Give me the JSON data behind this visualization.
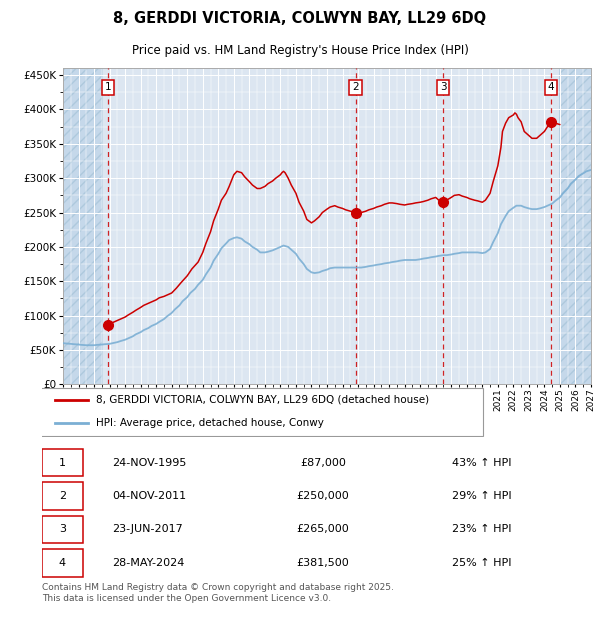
{
  "title": "8, GERDDI VICTORIA, COLWYN BAY, LL29 6DQ",
  "subtitle": "Price paid vs. HM Land Registry's House Price Index (HPI)",
  "ytick_values": [
    0,
    50000,
    100000,
    150000,
    200000,
    250000,
    300000,
    350000,
    400000,
    450000
  ],
  "ylim": [
    0,
    460000
  ],
  "xlim_start": 1993.0,
  "xlim_end": 2027.0,
  "background_color": "#ffffff",
  "plot_bg_color": "#dce6f1",
  "hatch_color": "#c5d8ea",
  "grid_color": "#ffffff",
  "red_line_color": "#cc0000",
  "blue_line_color": "#7bafd4",
  "sale_marker_color": "#cc0000",
  "sale_marker_size": 7,
  "vline_color": "#cc0000",
  "legend_label_red": "8, GERDDI VICTORIA, COLWYN BAY, LL29 6DQ (detached house)",
  "legend_label_blue": "HPI: Average price, detached house, Conwy",
  "sale_points": [
    {
      "num": 1,
      "year": 1995.9,
      "price": 87000,
      "label": "1",
      "date": "24-NOV-1995",
      "amount": "£87,000",
      "pct": "43% ↑ HPI"
    },
    {
      "num": 2,
      "year": 2011.84,
      "price": 250000,
      "label": "2",
      "date": "04-NOV-2011",
      "amount": "£250,000",
      "pct": "29% ↑ HPI"
    },
    {
      "num": 3,
      "year": 2017.47,
      "price": 265000,
      "label": "3",
      "date": "23-JUN-2017",
      "amount": "£265,000",
      "pct": "23% ↑ HPI"
    },
    {
      "num": 4,
      "year": 2024.41,
      "price": 381500,
      "label": "4",
      "date": "28-MAY-2024",
      "amount": "£381,500",
      "pct": "25% ↑ HPI"
    }
  ],
  "footer_text": "Contains HM Land Registry data © Crown copyright and database right 2025.\nThis data is licensed under the Open Government Licence v3.0.",
  "hpi_red_data": {
    "years": [
      1995.9,
      1996.0,
      1996.1,
      1996.2,
      1996.3,
      1996.5,
      1996.7,
      1997.0,
      1997.2,
      1997.5,
      1997.7,
      1998.0,
      1998.2,
      1998.5,
      1998.7,
      1999.0,
      1999.2,
      1999.5,
      1999.7,
      2000.0,
      2000.3,
      2000.6,
      2001.0,
      2001.3,
      2001.7,
      2002.0,
      2002.2,
      2002.5,
      2002.7,
      2003.0,
      2003.2,
      2003.5,
      2003.7,
      2004.0,
      2004.2,
      2004.5,
      2004.7,
      2005.0,
      2005.2,
      2005.5,
      2005.7,
      2006.0,
      2006.2,
      2006.5,
      2006.7,
      2007.0,
      2007.1,
      2007.2,
      2007.3,
      2007.5,
      2007.7,
      2008.0,
      2008.2,
      2008.5,
      2008.7,
      2009.0,
      2009.2,
      2009.5,
      2009.7,
      2010.0,
      2010.2,
      2010.5,
      2010.7,
      2011.0,
      2011.2,
      2011.5,
      2011.7,
      2011.84,
      2012.0,
      2012.2,
      2012.5,
      2012.7,
      2013.0,
      2013.2,
      2013.5,
      2013.7,
      2014.0,
      2014.2,
      2014.5,
      2014.7,
      2015.0,
      2015.2,
      2015.5,
      2015.7,
      2016.0,
      2016.2,
      2016.5,
      2016.7,
      2017.0,
      2017.2,
      2017.47,
      2017.5,
      2017.7,
      2018.0,
      2018.2,
      2018.5,
      2018.7,
      2019.0,
      2019.2,
      2019.5,
      2019.7,
      2020.0,
      2020.2,
      2020.5,
      2020.7,
      2021.0,
      2021.2,
      2021.3,
      2021.5,
      2021.7,
      2022.0,
      2022.1,
      2022.2,
      2022.3,
      2022.5,
      2022.6,
      2022.7,
      2023.0,
      2023.2,
      2023.5,
      2023.7,
      2024.0,
      2024.2,
      2024.41,
      2024.5,
      2024.7,
      2025.0
    ],
    "values": [
      87000,
      88000,
      89000,
      90000,
      91000,
      93000,
      95000,
      98000,
      101000,
      105000,
      108000,
      112000,
      115000,
      118000,
      120000,
      123000,
      126000,
      128000,
      130000,
      133000,
      140000,
      148000,
      158000,
      168000,
      178000,
      192000,
      205000,
      222000,
      238000,
      255000,
      268000,
      278000,
      288000,
      305000,
      310000,
      308000,
      302000,
      295000,
      290000,
      285000,
      285000,
      288000,
      292000,
      296000,
      300000,
      305000,
      308000,
      310000,
      308000,
      300000,
      290000,
      278000,
      265000,
      252000,
      240000,
      235000,
      238000,
      244000,
      250000,
      255000,
      258000,
      260000,
      258000,
      256000,
      254000,
      252000,
      251000,
      250000,
      249000,
      250000,
      252000,
      254000,
      256000,
      258000,
      260000,
      262000,
      264000,
      264000,
      263000,
      262000,
      261000,
      262000,
      263000,
      264000,
      265000,
      266000,
      268000,
      270000,
      272000,
      268000,
      265000,
      267000,
      268000,
      272000,
      275000,
      276000,
      274000,
      272000,
      270000,
      268000,
      267000,
      265000,
      268000,
      278000,
      295000,
      318000,
      345000,
      368000,
      380000,
      388000,
      392000,
      395000,
      393000,
      388000,
      382000,
      375000,
      368000,
      362000,
      358000,
      358000,
      362000,
      368000,
      375000,
      381500,
      382000,
      380000,
      378000
    ]
  },
  "hpi_blue_data": {
    "years": [
      1993.0,
      1993.2,
      1993.5,
      1993.7,
      1994.0,
      1994.2,
      1994.5,
      1994.7,
      1995.0,
      1995.2,
      1995.5,
      1995.7,
      1996.0,
      1996.2,
      1996.5,
      1996.7,
      1997.0,
      1997.2,
      1997.5,
      1997.7,
      1998.0,
      1998.2,
      1998.5,
      1998.7,
      1999.0,
      1999.2,
      1999.5,
      1999.7,
      2000.0,
      2000.2,
      2000.5,
      2000.7,
      2001.0,
      2001.2,
      2001.5,
      2001.7,
      2002.0,
      2002.2,
      2002.5,
      2002.7,
      2003.0,
      2003.2,
      2003.5,
      2003.7,
      2004.0,
      2004.2,
      2004.5,
      2004.7,
      2005.0,
      2005.2,
      2005.5,
      2005.7,
      2006.0,
      2006.2,
      2006.5,
      2006.7,
      2007.0,
      2007.2,
      2007.5,
      2007.7,
      2008.0,
      2008.2,
      2008.5,
      2008.7,
      2009.0,
      2009.2,
      2009.5,
      2009.7,
      2010.0,
      2010.2,
      2010.5,
      2010.7,
      2011.0,
      2011.2,
      2011.5,
      2011.7,
      2012.0,
      2012.2,
      2012.5,
      2012.7,
      2013.0,
      2013.2,
      2013.5,
      2013.7,
      2014.0,
      2014.2,
      2014.5,
      2014.7,
      2015.0,
      2015.2,
      2015.5,
      2015.7,
      2016.0,
      2016.2,
      2016.5,
      2016.7,
      2017.0,
      2017.2,
      2017.5,
      2017.7,
      2018.0,
      2018.2,
      2018.5,
      2018.7,
      2019.0,
      2019.2,
      2019.5,
      2019.7,
      2020.0,
      2020.2,
      2020.5,
      2020.7,
      2021.0,
      2021.2,
      2021.5,
      2021.7,
      2022.0,
      2022.2,
      2022.5,
      2022.7,
      2023.0,
      2023.2,
      2023.5,
      2023.7,
      2024.0,
      2024.2,
      2024.5,
      2024.7,
      2025.0,
      2025.2,
      2025.5,
      2025.7,
      2026.0,
      2026.2,
      2026.5,
      2026.7,
      2027.0
    ],
    "values": [
      60000,
      59500,
      59000,
      58500,
      58000,
      57500,
      57000,
      57000,
      57000,
      57500,
      58000,
      58500,
      59000,
      60000,
      61500,
      63000,
      65000,
      67000,
      70000,
      73000,
      76000,
      79000,
      82000,
      85000,
      88000,
      91000,
      95000,
      99000,
      104000,
      109000,
      115000,
      121000,
      127000,
      133000,
      139000,
      145000,
      152000,
      160000,
      170000,
      180000,
      190000,
      198000,
      205000,
      210000,
      213000,
      214000,
      212000,
      208000,
      204000,
      200000,
      196000,
      192000,
      192000,
      193000,
      195000,
      197000,
      200000,
      202000,
      200000,
      196000,
      190000,
      183000,
      175000,
      168000,
      163000,
      162000,
      163000,
      165000,
      167000,
      169000,
      170000,
      170000,
      170000,
      170000,
      170000,
      170000,
      170000,
      170000,
      171000,
      172000,
      173000,
      174000,
      175000,
      176000,
      177000,
      178000,
      179000,
      180000,
      181000,
      181000,
      181000,
      181000,
      182000,
      183000,
      184000,
      185000,
      186000,
      187000,
      188000,
      188000,
      189000,
      190000,
      191000,
      192000,
      192000,
      192000,
      192000,
      192000,
      191000,
      192000,
      197000,
      207000,
      220000,
      233000,
      245000,
      252000,
      257000,
      260000,
      260000,
      258000,
      256000,
      255000,
      255000,
      256000,
      258000,
      260000,
      263000,
      267000,
      272000,
      278000,
      285000,
      292000,
      298000,
      303000,
      307000,
      310000,
      312000
    ]
  }
}
